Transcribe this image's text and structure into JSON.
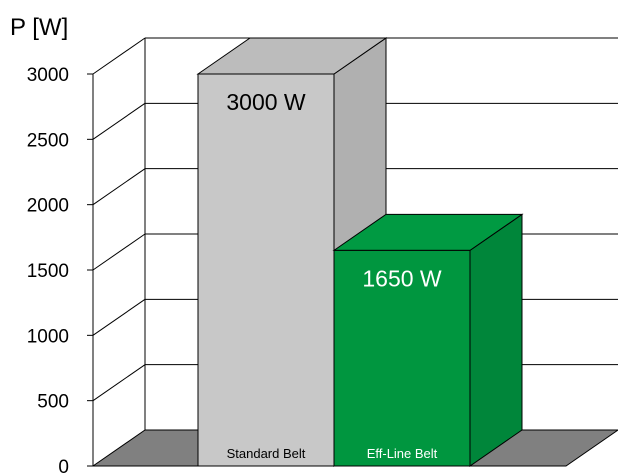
{
  "chart_data": {
    "type": "bar",
    "title": "",
    "ylabel": "P [W]",
    "xlabel": "",
    "categories": [
      "Standard Belt",
      "Eff-Line Belt"
    ],
    "values": [
      3000,
      1650
    ],
    "data_labels": [
      "3000 W",
      "1650 W"
    ],
    "yticks": [
      0,
      500,
      1000,
      1500,
      2000,
      2500,
      3000
    ],
    "ylim": [
      0,
      3000
    ],
    "grid": true,
    "style": "3d",
    "colors": {
      "Standard Belt": "#c8c8c8",
      "Eff-Line Belt": "#00963f"
    },
    "label_colors": {
      "Standard Belt": "#000000",
      "Eff-Line Belt": "#ffffff"
    }
  }
}
